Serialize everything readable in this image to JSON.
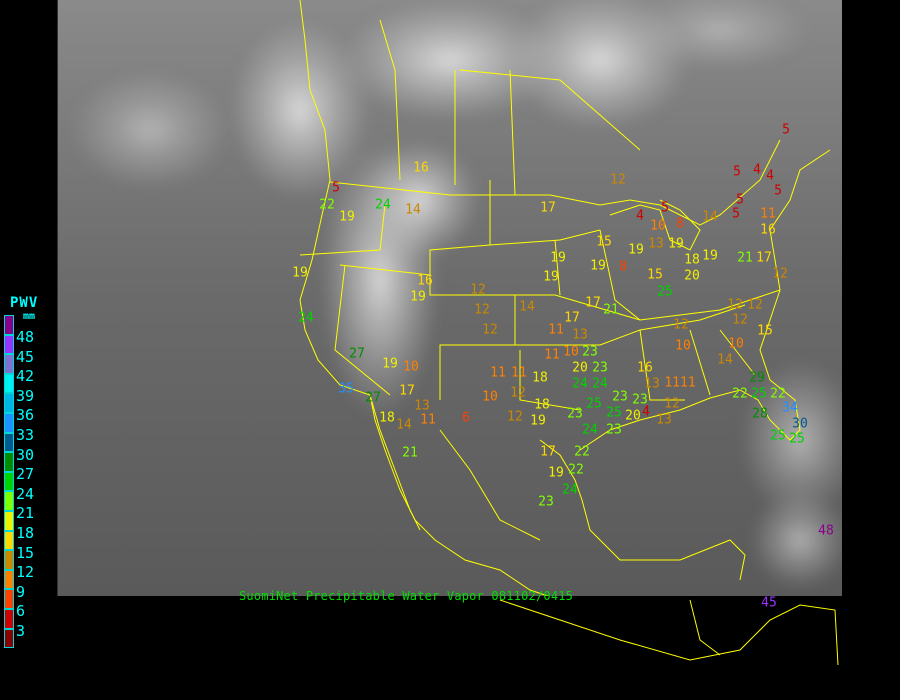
{
  "legend": {
    "title": "PWV",
    "unit": "mm",
    "levels": [
      {
        "label": "48",
        "color": "#8b008b"
      },
      {
        "label": "45",
        "color": "#9933ff"
      },
      {
        "label": "42",
        "color": "#8070d0"
      },
      {
        "label": "39",
        "color": "#00f0f0"
      },
      {
        "label": "36",
        "color": "#00b4e6"
      },
      {
        "label": "33",
        "color": "#1e90ff"
      },
      {
        "label": "30",
        "color": "#005a8c"
      },
      {
        "label": "27",
        "color": "#008c00"
      },
      {
        "label": "24",
        "color": "#00d200"
      },
      {
        "label": "21",
        "color": "#80ff00"
      },
      {
        "label": "18",
        "color": "#f0f000"
      },
      {
        "label": "15",
        "color": "#ffd700"
      },
      {
        "label": "12",
        "color": "#cc8800"
      },
      {
        "label": "9",
        "color": "#ff8000"
      },
      {
        "label": "6",
        "color": "#ff4000"
      },
      {
        "label": "3",
        "color": "#d00000"
      },
      {
        "label": "",
        "color": "#8b0000"
      }
    ]
  },
  "caption": "SuomiNet Precipitable Water Vapor 081102/0415",
  "map": {
    "background": "grayscale infrared satellite",
    "border_color": "#ffff00"
  },
  "stations": [
    "16",
    "5",
    "22",
    "24",
    "14",
    "19",
    "19",
    "24",
    "27",
    "19",
    "10",
    "35",
    "27",
    "17",
    "13",
    "14",
    "18",
    "11",
    "6",
    "16",
    "19",
    "12",
    "12",
    "12",
    "21",
    "10",
    "11",
    "11",
    "12",
    "12",
    "18",
    "18",
    "19",
    "17",
    "19",
    "22",
    "22",
    "24",
    "23",
    "14",
    "17",
    "19",
    "19",
    "19",
    "17",
    "17",
    "21",
    "15",
    "11",
    "13",
    "11",
    "10",
    "23",
    "20",
    "23",
    "24",
    "24",
    "23",
    "25",
    "25",
    "20",
    "4",
    "24",
    "23",
    "23",
    "23",
    "13",
    "16",
    "1111",
    "12",
    "10",
    "12",
    "13",
    "13",
    "19",
    "15",
    "25",
    "20",
    "19",
    "18",
    "8",
    "19",
    "10",
    "8",
    "5",
    "4",
    "12",
    "14",
    "5",
    "5",
    "5",
    "4",
    "4",
    "5",
    "5",
    "11",
    "16",
    "17",
    "21",
    "12",
    "12",
    "12",
    "12",
    "15",
    "10",
    "14",
    "29",
    "22",
    "25",
    "22",
    "28",
    "34",
    "30",
    "25",
    "25",
    "48",
    "45"
  ]
}
